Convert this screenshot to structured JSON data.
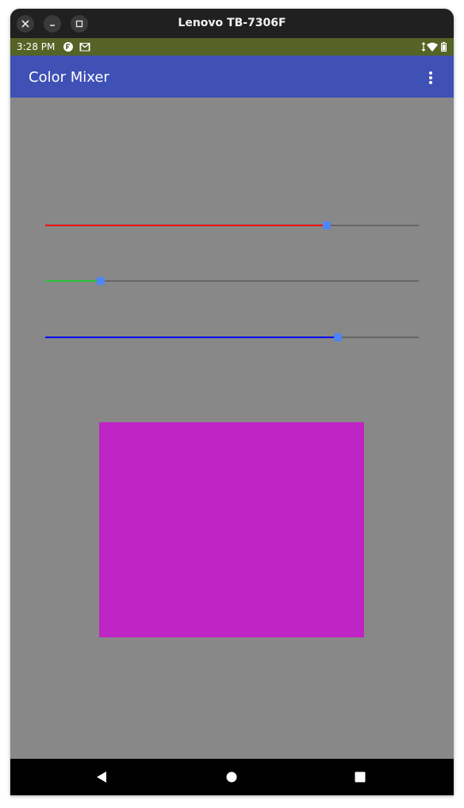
{
  "window": {
    "title": "Lenovo TB-7306F",
    "close_icon": "close-icon",
    "minimize_icon": "minimize-icon",
    "maximize_icon": "maximize-icon"
  },
  "status_bar": {
    "time": "3:28 PM",
    "background": "#556327",
    "left_icons": [
      "app-notification-icon",
      "gmail-icon"
    ],
    "right_icons": [
      "data-arrows-icon",
      "wifi-icon",
      "battery-icon"
    ]
  },
  "app_bar": {
    "title": "Color Mixer",
    "background": "#3f51b5",
    "overflow_icon": "more-vert-icon"
  },
  "sliders": [
    {
      "name": "red",
      "color": "#ff0000",
      "value": 0.753
    },
    {
      "name": "green",
      "color": "#22c43a",
      "value": 0.149
    },
    {
      "name": "blue",
      "color": "#0000ff",
      "value": 0.783
    }
  ],
  "slider_thumb_color": "#4f86f7",
  "swatch": {
    "color": "#bf24c4"
  },
  "background_color": "#888888",
  "nav_bar": {
    "back_icon": "back-icon",
    "home_icon": "home-icon",
    "recents_icon": "recents-icon"
  }
}
